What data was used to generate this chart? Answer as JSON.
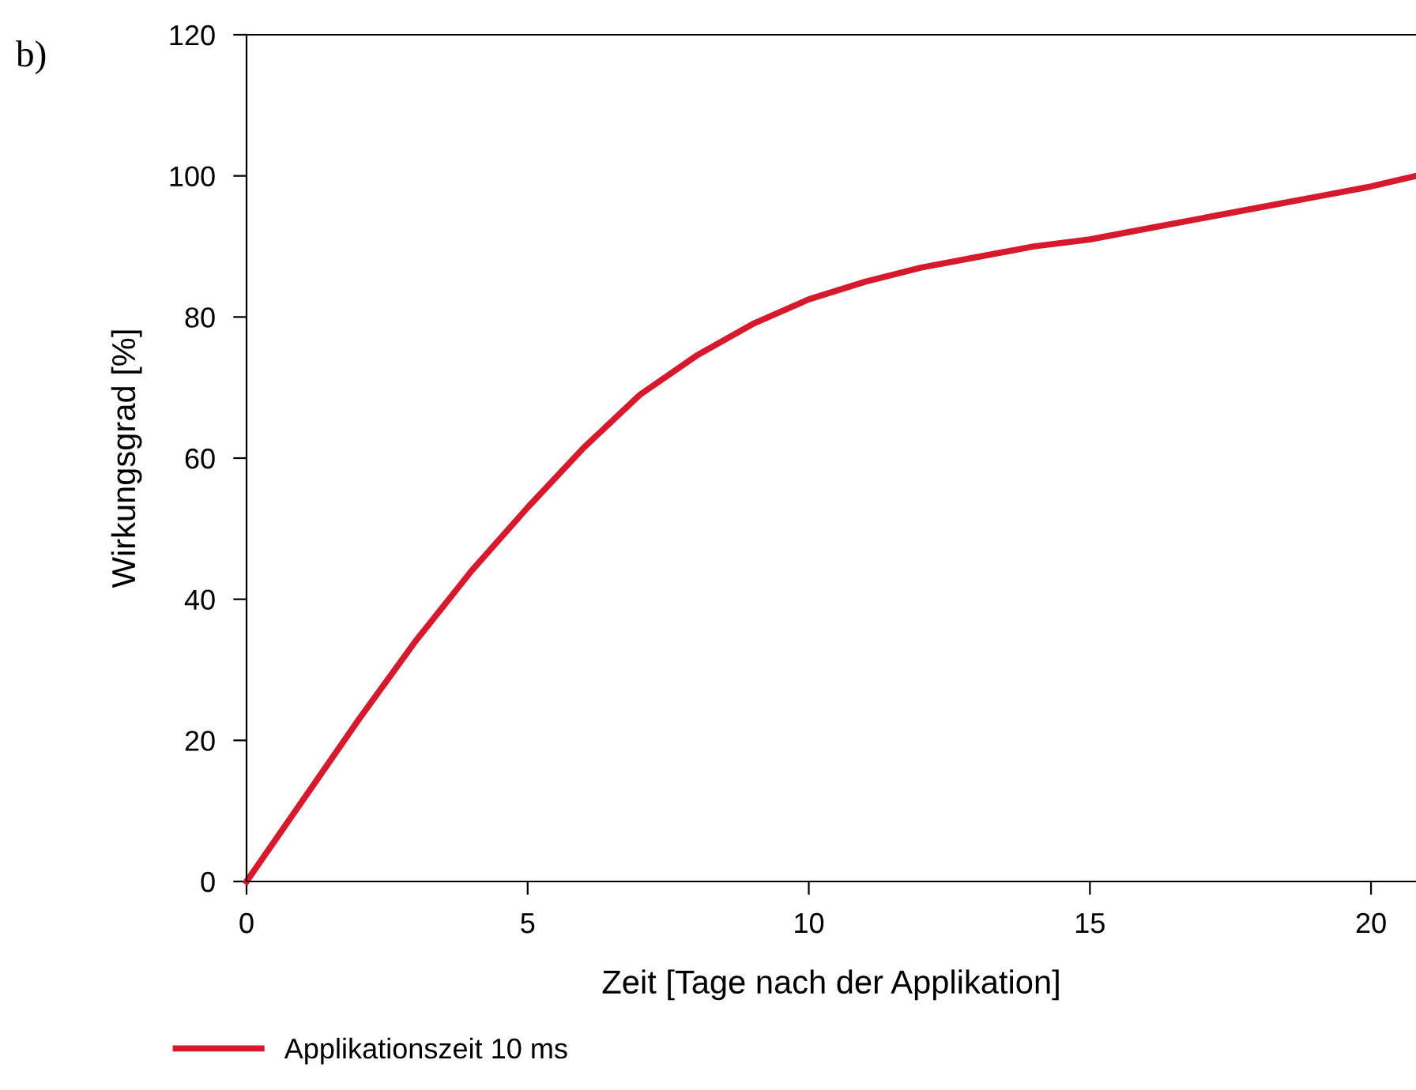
{
  "chart_data": {
    "type": "line",
    "xlabel": "Zeit [Tage nach der Applikation]",
    "ylabel": "Wirkungsgrad [%]",
    "annotations": [
      "b)"
    ],
    "x": [
      0,
      1,
      2,
      3,
      4,
      5,
      6,
      7,
      8,
      9,
      10,
      11,
      12,
      13,
      14,
      15,
      16,
      17,
      18,
      19,
      20,
      20.8
    ],
    "series": [
      {
        "name": "Applikationszeit 10 ms",
        "color": "#d7192d",
        "values": [
          0,
          11.5,
          23,
          34,
          44,
          53,
          61.5,
          69,
          74.5,
          79,
          82.5,
          85,
          87,
          88.5,
          90,
          91,
          92.5,
          94,
          95.5,
          97,
          98.5,
          100
        ]
      }
    ],
    "xlim": [
      0,
      20.8
    ],
    "ylim": [
      0,
      120
    ],
    "xticks": [
      0,
      5,
      10,
      15,
      20
    ],
    "yticks": [
      0,
      20,
      40,
      60,
      80,
      100,
      120
    ],
    "grid": false,
    "legend": "bottom left",
    "marker": "none",
    "line_style": "solid"
  }
}
